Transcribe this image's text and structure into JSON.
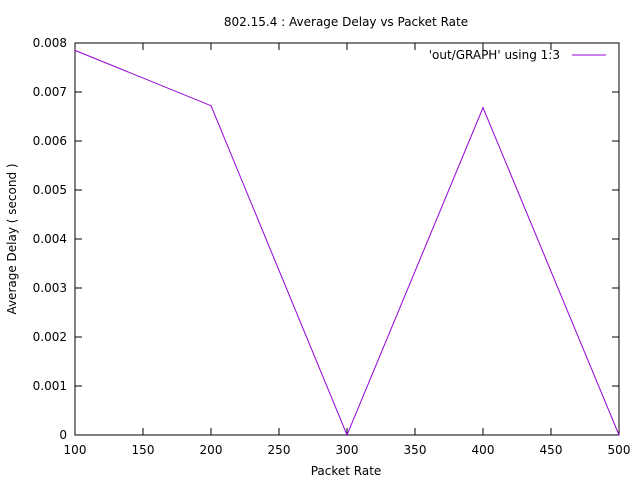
{
  "chart_data": {
    "type": "line",
    "title": "802.15.4 : Average Delay vs Packet Rate",
    "xlabel": "Packet Rate",
    "ylabel": "Average Delay ( second )",
    "xlim": [
      100,
      500
    ],
    "ylim": [
      0,
      0.008
    ],
    "xticks": [
      100,
      150,
      200,
      250,
      300,
      350,
      400,
      450,
      500
    ],
    "yticks": [
      0,
      0.001,
      0.002,
      0.003,
      0.004,
      0.005,
      0.006,
      0.007,
      0.008
    ],
    "ytick_labels": [
      "0",
      "0.001",
      "0.002",
      "0.003",
      "0.004",
      "0.005",
      "0.006",
      "0.007",
      "0.008"
    ],
    "grid": false,
    "legend_position": "top-right",
    "series": [
      {
        "name": "'out/GRAPH' using 1:3",
        "color": "#9400d3",
        "x": [
          100,
          200,
          300,
          400,
          500
        ],
        "y": [
          0.00785,
          0.00672,
          0.0,
          0.00668,
          0.0
        ]
      }
    ]
  }
}
